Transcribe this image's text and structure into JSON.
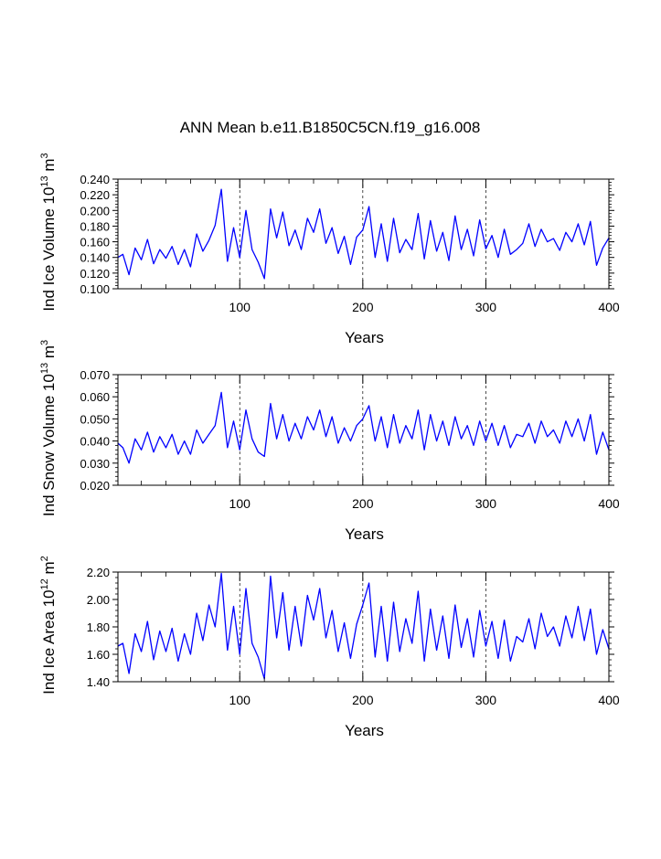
{
  "figure": {
    "title": "ANN Mean b.e11.B1850C5CN.f19_g16.008",
    "line_color": "#0000ff",
    "background": "#ffffff"
  },
  "chart_data": [
    {
      "type": "line",
      "title": "",
      "xlabel": "Years",
      "ylabel": "Ind Ice Volume 10",
      "ylabel_exp": "13",
      "ylabel_unit": " m",
      "ylabel_unit_exp": "3",
      "xlim": [
        1,
        400
      ],
      "ylim": [
        0.1,
        0.24
      ],
      "x_ticks": [
        100,
        200,
        300,
        400
      ],
      "x_tick_labels": [
        "100",
        "200",
        "300",
        "400"
      ],
      "x_dashed_gridlines": [
        100,
        200,
        300
      ],
      "y_ticks": [
        0.1,
        0.12,
        0.14,
        0.16,
        0.18,
        0.2,
        0.22,
        0.24
      ],
      "y_tick_labels": [
        "0.100",
        "0.120",
        "0.140",
        "0.160",
        "0.180",
        "0.200",
        "0.220",
        "0.240"
      ],
      "series": [
        {
          "name": "Ind Ice Volume",
          "x": [
            1,
            5,
            10,
            15,
            20,
            25,
            30,
            35,
            40,
            45,
            50,
            55,
            60,
            65,
            70,
            75,
            80,
            85,
            90,
            95,
            100,
            105,
            110,
            115,
            120,
            125,
            130,
            135,
            140,
            145,
            150,
            155,
            160,
            165,
            170,
            175,
            180,
            185,
            190,
            195,
            200,
            205,
            210,
            215,
            220,
            225,
            230,
            235,
            240,
            245,
            250,
            255,
            260,
            265,
            270,
            275,
            280,
            285,
            290,
            295,
            300,
            305,
            310,
            315,
            320,
            325,
            330,
            335,
            340,
            345,
            350,
            355,
            360,
            365,
            370,
            375,
            380,
            385,
            390,
            395,
            400
          ],
          "values": [
            0.14,
            0.144,
            0.118,
            0.152,
            0.137,
            0.163,
            0.132,
            0.15,
            0.139,
            0.154,
            0.131,
            0.15,
            0.128,
            0.17,
            0.148,
            0.162,
            0.181,
            0.227,
            0.135,
            0.178,
            0.14,
            0.2,
            0.15,
            0.134,
            0.113,
            0.202,
            0.165,
            0.198,
            0.155,
            0.175,
            0.15,
            0.19,
            0.172,
            0.202,
            0.158,
            0.178,
            0.145,
            0.167,
            0.131,
            0.166,
            0.175,
            0.205,
            0.14,
            0.183,
            0.135,
            0.19,
            0.146,
            0.163,
            0.15,
            0.196,
            0.138,
            0.187,
            0.148,
            0.172,
            0.136,
            0.193,
            0.15,
            0.176,
            0.142,
            0.188,
            0.151,
            0.168,
            0.14,
            0.176,
            0.144,
            0.15,
            0.158,
            0.183,
            0.154,
            0.176,
            0.16,
            0.164,
            0.149,
            0.172,
            0.16,
            0.183,
            0.156,
            0.186,
            0.13,
            0.152,
            0.165
          ]
        }
      ]
    },
    {
      "type": "line",
      "title": "",
      "xlabel": "Years",
      "ylabel": "Ind Snow Volume 10",
      "ylabel_exp": "13",
      "ylabel_unit": " m",
      "ylabel_unit_exp": "3",
      "xlim": [
        1,
        400
      ],
      "ylim": [
        0.02,
        0.07
      ],
      "x_ticks": [
        100,
        200,
        300,
        400
      ],
      "x_tick_labels": [
        "100",
        "200",
        "300",
        "400"
      ],
      "x_dashed_gridlines": [
        100,
        200,
        300
      ],
      "y_ticks": [
        0.02,
        0.03,
        0.04,
        0.05,
        0.06,
        0.07
      ],
      "y_tick_labels": [
        "0.020",
        "0.030",
        "0.040",
        "0.050",
        "0.060",
        "0.070"
      ],
      "series": [
        {
          "name": "Ind Snow Volume",
          "x": [
            1,
            5,
            10,
            15,
            20,
            25,
            30,
            35,
            40,
            45,
            50,
            55,
            60,
            65,
            70,
            75,
            80,
            85,
            90,
            95,
            100,
            105,
            110,
            115,
            120,
            125,
            130,
            135,
            140,
            145,
            150,
            155,
            160,
            165,
            170,
            175,
            180,
            185,
            190,
            195,
            200,
            205,
            210,
            215,
            220,
            225,
            230,
            235,
            240,
            245,
            250,
            255,
            260,
            265,
            270,
            275,
            280,
            285,
            290,
            295,
            300,
            305,
            310,
            315,
            320,
            325,
            330,
            335,
            340,
            345,
            350,
            355,
            360,
            365,
            370,
            375,
            380,
            385,
            390,
            395,
            400
          ],
          "values": [
            0.039,
            0.037,
            0.03,
            0.041,
            0.036,
            0.044,
            0.035,
            0.042,
            0.037,
            0.043,
            0.034,
            0.04,
            0.034,
            0.045,
            0.039,
            0.043,
            0.047,
            0.062,
            0.037,
            0.049,
            0.036,
            0.054,
            0.041,
            0.035,
            0.033,
            0.057,
            0.041,
            0.052,
            0.04,
            0.048,
            0.041,
            0.051,
            0.045,
            0.054,
            0.042,
            0.051,
            0.039,
            0.046,
            0.04,
            0.047,
            0.05,
            0.056,
            0.04,
            0.051,
            0.037,
            0.052,
            0.039,
            0.047,
            0.041,
            0.054,
            0.036,
            0.052,
            0.04,
            0.049,
            0.038,
            0.051,
            0.041,
            0.047,
            0.038,
            0.049,
            0.04,
            0.048,
            0.038,
            0.047,
            0.037,
            0.043,
            0.042,
            0.048,
            0.039,
            0.049,
            0.042,
            0.045,
            0.039,
            0.049,
            0.042,
            0.05,
            0.04,
            0.052,
            0.034,
            0.044,
            0.036
          ]
        }
      ]
    },
    {
      "type": "line",
      "title": "",
      "xlabel": "Years",
      "ylabel": "Ind Ice Area 10",
      "ylabel_exp": "12",
      "ylabel_unit": " m",
      "ylabel_unit_exp": "2",
      "xlim": [
        1,
        400
      ],
      "ylim": [
        1.4,
        2.2
      ],
      "x_ticks": [
        100,
        200,
        300,
        400
      ],
      "x_tick_labels": [
        "100",
        "200",
        "300",
        "400"
      ],
      "x_dashed_gridlines": [
        100,
        200,
        300
      ],
      "y_ticks": [
        1.4,
        1.6,
        1.8,
        2.0,
        2.2
      ],
      "y_tick_labels": [
        "1.40",
        "1.60",
        "1.80",
        "2.00",
        "2.20"
      ],
      "series": [
        {
          "name": "Ind Ice Area",
          "x": [
            1,
            5,
            10,
            15,
            20,
            25,
            30,
            35,
            40,
            45,
            50,
            55,
            60,
            65,
            70,
            75,
            80,
            85,
            90,
            95,
            100,
            105,
            110,
            115,
            120,
            125,
            130,
            135,
            140,
            145,
            150,
            155,
            160,
            165,
            170,
            175,
            180,
            185,
            190,
            195,
            200,
            205,
            210,
            215,
            220,
            225,
            230,
            235,
            240,
            245,
            250,
            255,
            260,
            265,
            270,
            275,
            280,
            285,
            290,
            295,
            300,
            305,
            310,
            315,
            320,
            325,
            330,
            335,
            340,
            345,
            350,
            355,
            360,
            365,
            370,
            375,
            380,
            385,
            390,
            395,
            400
          ],
          "values": [
            1.66,
            1.68,
            1.46,
            1.75,
            1.62,
            1.84,
            1.56,
            1.77,
            1.62,
            1.79,
            1.55,
            1.75,
            1.6,
            1.9,
            1.7,
            1.96,
            1.8,
            2.19,
            1.63,
            1.95,
            1.6,
            2.08,
            1.68,
            1.58,
            1.42,
            2.17,
            1.72,
            2.05,
            1.63,
            1.95,
            1.66,
            2.03,
            1.85,
            2.08,
            1.72,
            1.92,
            1.62,
            1.83,
            1.57,
            1.82,
            1.96,
            2.12,
            1.58,
            1.95,
            1.55,
            1.98,
            1.62,
            1.86,
            1.68,
            2.06,
            1.55,
            1.93,
            1.63,
            1.88,
            1.57,
            1.96,
            1.65,
            1.86,
            1.58,
            1.92,
            1.66,
            1.84,
            1.57,
            1.85,
            1.55,
            1.73,
            1.69,
            1.86,
            1.64,
            1.9,
            1.73,
            1.8,
            1.66,
            1.88,
            1.72,
            1.95,
            1.7,
            1.93,
            1.6,
            1.78,
            1.64
          ]
        }
      ]
    }
  ]
}
